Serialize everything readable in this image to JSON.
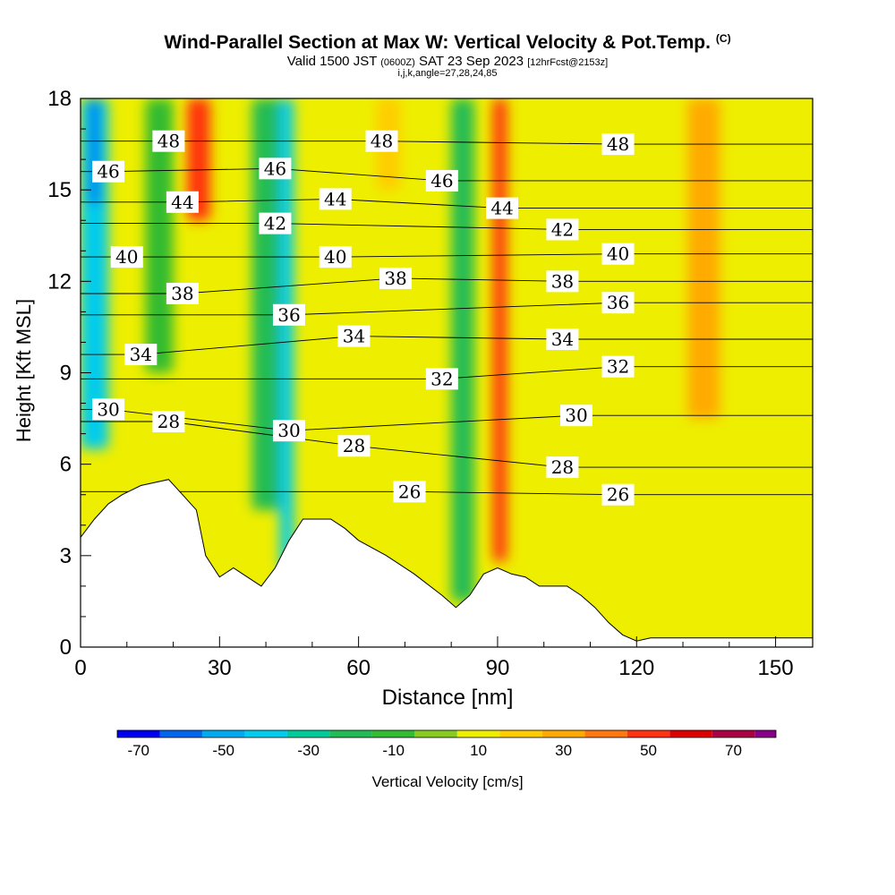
{
  "header": {
    "title": "Wind-Parallel Section at Max W: Vertical Velocity & Pot.Temp.",
    "copyright": "(C)",
    "valid_prefix": "Valid 1500 JST",
    "valid_utc": "(0600Z)",
    "valid_date": "SAT 23 Sep 2023",
    "forecast": "[12hrFcst@2153z]",
    "params": "i,j,k,angle=27,28,24,85"
  },
  "chart_data": {
    "type": "heatmap",
    "xlabel": "Distance [nm]",
    "ylabel": "Height [Kft MSL]",
    "xlim": [
      0,
      158
    ],
    "ylim": [
      0,
      18
    ],
    "xticks": [
      0,
      30,
      60,
      90,
      120,
      150
    ],
    "yticks": [
      0,
      3,
      6,
      9,
      12,
      15,
      18
    ],
    "grid": false,
    "terrain_profile": [
      [
        0,
        3.6
      ],
      [
        3,
        4.2
      ],
      [
        6,
        4.7
      ],
      [
        9,
        5.0
      ],
      [
        13,
        5.3
      ],
      [
        19,
        5.5
      ],
      [
        22,
        5.0
      ],
      [
        25,
        4.5
      ],
      [
        27,
        3.0
      ],
      [
        30,
        2.3
      ],
      [
        33,
        2.6
      ],
      [
        39,
        2.0
      ],
      [
        42,
        2.6
      ],
      [
        45,
        3.5
      ],
      [
        48,
        4.2
      ],
      [
        54,
        4.2
      ],
      [
        57,
        3.9
      ],
      [
        60,
        3.5
      ],
      [
        66,
        3.0
      ],
      [
        72,
        2.4
      ],
      [
        78,
        1.7
      ],
      [
        81,
        1.3
      ],
      [
        84,
        1.7
      ],
      [
        87,
        2.4
      ],
      [
        90,
        2.6
      ],
      [
        93,
        2.4
      ],
      [
        96,
        2.3
      ],
      [
        99,
        2.0
      ],
      [
        105,
        2.0
      ],
      [
        108,
        1.7
      ],
      [
        111,
        1.3
      ],
      [
        114,
        0.8
      ],
      [
        117,
        0.4
      ],
      [
        120,
        0.2
      ],
      [
        123,
        0.3
      ],
      [
        158,
        0.3
      ]
    ],
    "potential_temperature_labels": [
      {
        "value": 48,
        "x": 19,
        "y": 16.6
      },
      {
        "value": 48,
        "x": 65,
        "y": 16.6
      },
      {
        "value": 48,
        "x": 116,
        "y": 16.5
      },
      {
        "value": 46,
        "x": 6,
        "y": 15.6
      },
      {
        "value": 46,
        "x": 42,
        "y": 15.7
      },
      {
        "value": 46,
        "x": 78,
        "y": 15.3
      },
      {
        "value": 44,
        "x": 22,
        "y": 14.6
      },
      {
        "value": 44,
        "x": 55,
        "y": 14.7
      },
      {
        "value": 44,
        "x": 91,
        "y": 14.4
      },
      {
        "value": 42,
        "x": 42,
        "y": 13.9
      },
      {
        "value": 42,
        "x": 104,
        "y": 13.7
      },
      {
        "value": 40,
        "x": 10,
        "y": 12.8
      },
      {
        "value": 40,
        "x": 55,
        "y": 12.8
      },
      {
        "value": 40,
        "x": 116,
        "y": 12.9
      },
      {
        "value": 38,
        "x": 22,
        "y": 11.6
      },
      {
        "value": 38,
        "x": 68,
        "y": 12.1
      },
      {
        "value": 38,
        "x": 104,
        "y": 12.0
      },
      {
        "value": 36,
        "x": 45,
        "y": 10.9
      },
      {
        "value": 36,
        "x": 116,
        "y": 11.3
      },
      {
        "value": 34,
        "x": 13,
        "y": 9.6
      },
      {
        "value": 34,
        "x": 59,
        "y": 10.2
      },
      {
        "value": 34,
        "x": 104,
        "y": 10.1
      },
      {
        "value": 32,
        "x": 78,
        "y": 8.8
      },
      {
        "value": 32,
        "x": 116,
        "y": 9.2
      },
      {
        "value": 30,
        "x": 6,
        "y": 7.8
      },
      {
        "value": 30,
        "x": 45,
        "y": 7.1
      },
      {
        "value": 30,
        "x": 107,
        "y": 7.6
      },
      {
        "value": 28,
        "x": 19,
        "y": 7.4
      },
      {
        "value": 28,
        "x": 59,
        "y": 6.6
      },
      {
        "value": 28,
        "x": 104,
        "y": 5.9
      },
      {
        "value": 26,
        "x": 71,
        "y": 5.1
      },
      {
        "value": 26,
        "x": 116,
        "y": 5.0
      }
    ],
    "colorbar": {
      "label": "Vertical Velocity [cm/s]",
      "boundaries": [
        -75,
        -65,
        -55,
        -45,
        -35,
        -25,
        -15,
        -5,
        5,
        15,
        25,
        35,
        45,
        55,
        65,
        75,
        80
      ],
      "colors": [
        "#0000ee",
        "#0066ee",
        "#00aaee",
        "#00ccee",
        "#00cc99",
        "#22bb55",
        "#33bb33",
        "#88cc22",
        "#eeee00",
        "#ffcc00",
        "#ffaa00",
        "#ff7711",
        "#ff3311",
        "#dd0000",
        "#aa0044",
        "#880088"
      ],
      "tick_labels": [
        -70,
        -50,
        -30,
        -10,
        10,
        30,
        50,
        70
      ]
    },
    "velocity_field": [
      {
        "x": [
          0,
          6
        ],
        "y_bottom": 6.5,
        "level": -45
      },
      {
        "x": [
          2,
          4
        ],
        "y_bottom": 14.5,
        "level": -65
      },
      {
        "x": [
          14,
          20
        ],
        "y_bottom": 9.0,
        "level": -10
      },
      {
        "x": [
          23,
          28
        ],
        "y_bottom": 14.0,
        "level": 50
      },
      {
        "x": [
          37,
          44
        ],
        "y_bottom": 4.5,
        "level": -25
      },
      {
        "x": [
          43,
          46
        ],
        "y_bottom": 2.5,
        "level": -45
      },
      {
        "x": [
          64,
          69
        ],
        "y_bottom": 15.0,
        "level": 20
      },
      {
        "x": [
          80,
          85
        ],
        "y_bottom": 1.5,
        "level": -25
      },
      {
        "x": [
          89,
          92
        ],
        "y_bottom": 2.8,
        "level": 45
      },
      {
        "x": [
          131,
          138
        ],
        "y_bottom": 7.5,
        "level": 30
      }
    ]
  }
}
